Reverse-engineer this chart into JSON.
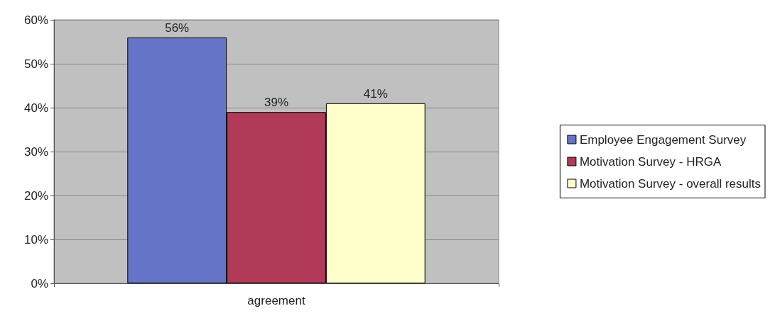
{
  "chart_data": {
    "type": "bar",
    "categories": [
      "agreement"
    ],
    "series": [
      {
        "name": "Employee Engagement Survey",
        "color": "#6674c8",
        "values": [
          56
        ],
        "value_labels": [
          "56%"
        ]
      },
      {
        "name": "Motivation Survey - HRGA",
        "color": "#b03a58",
        "values": [
          39
        ],
        "value_labels": [
          "39%"
        ]
      },
      {
        "name": "Motivation Survey - overall results",
        "color": "#ffffcc",
        "values": [
          41
        ],
        "value_labels": [
          "41%"
        ]
      }
    ],
    "ylim": [
      0,
      60
    ],
    "yticks": [
      {
        "value": 0,
        "label": "0%"
      },
      {
        "value": 10,
        "label": "10%"
      },
      {
        "value": 20,
        "label": "20%"
      },
      {
        "value": 30,
        "label": "30%"
      },
      {
        "value": 40,
        "label": "40%"
      },
      {
        "value": 50,
        "label": "50%"
      },
      {
        "value": 60,
        "label": "60%"
      }
    ],
    "grid": "y",
    "legend": "right"
  }
}
